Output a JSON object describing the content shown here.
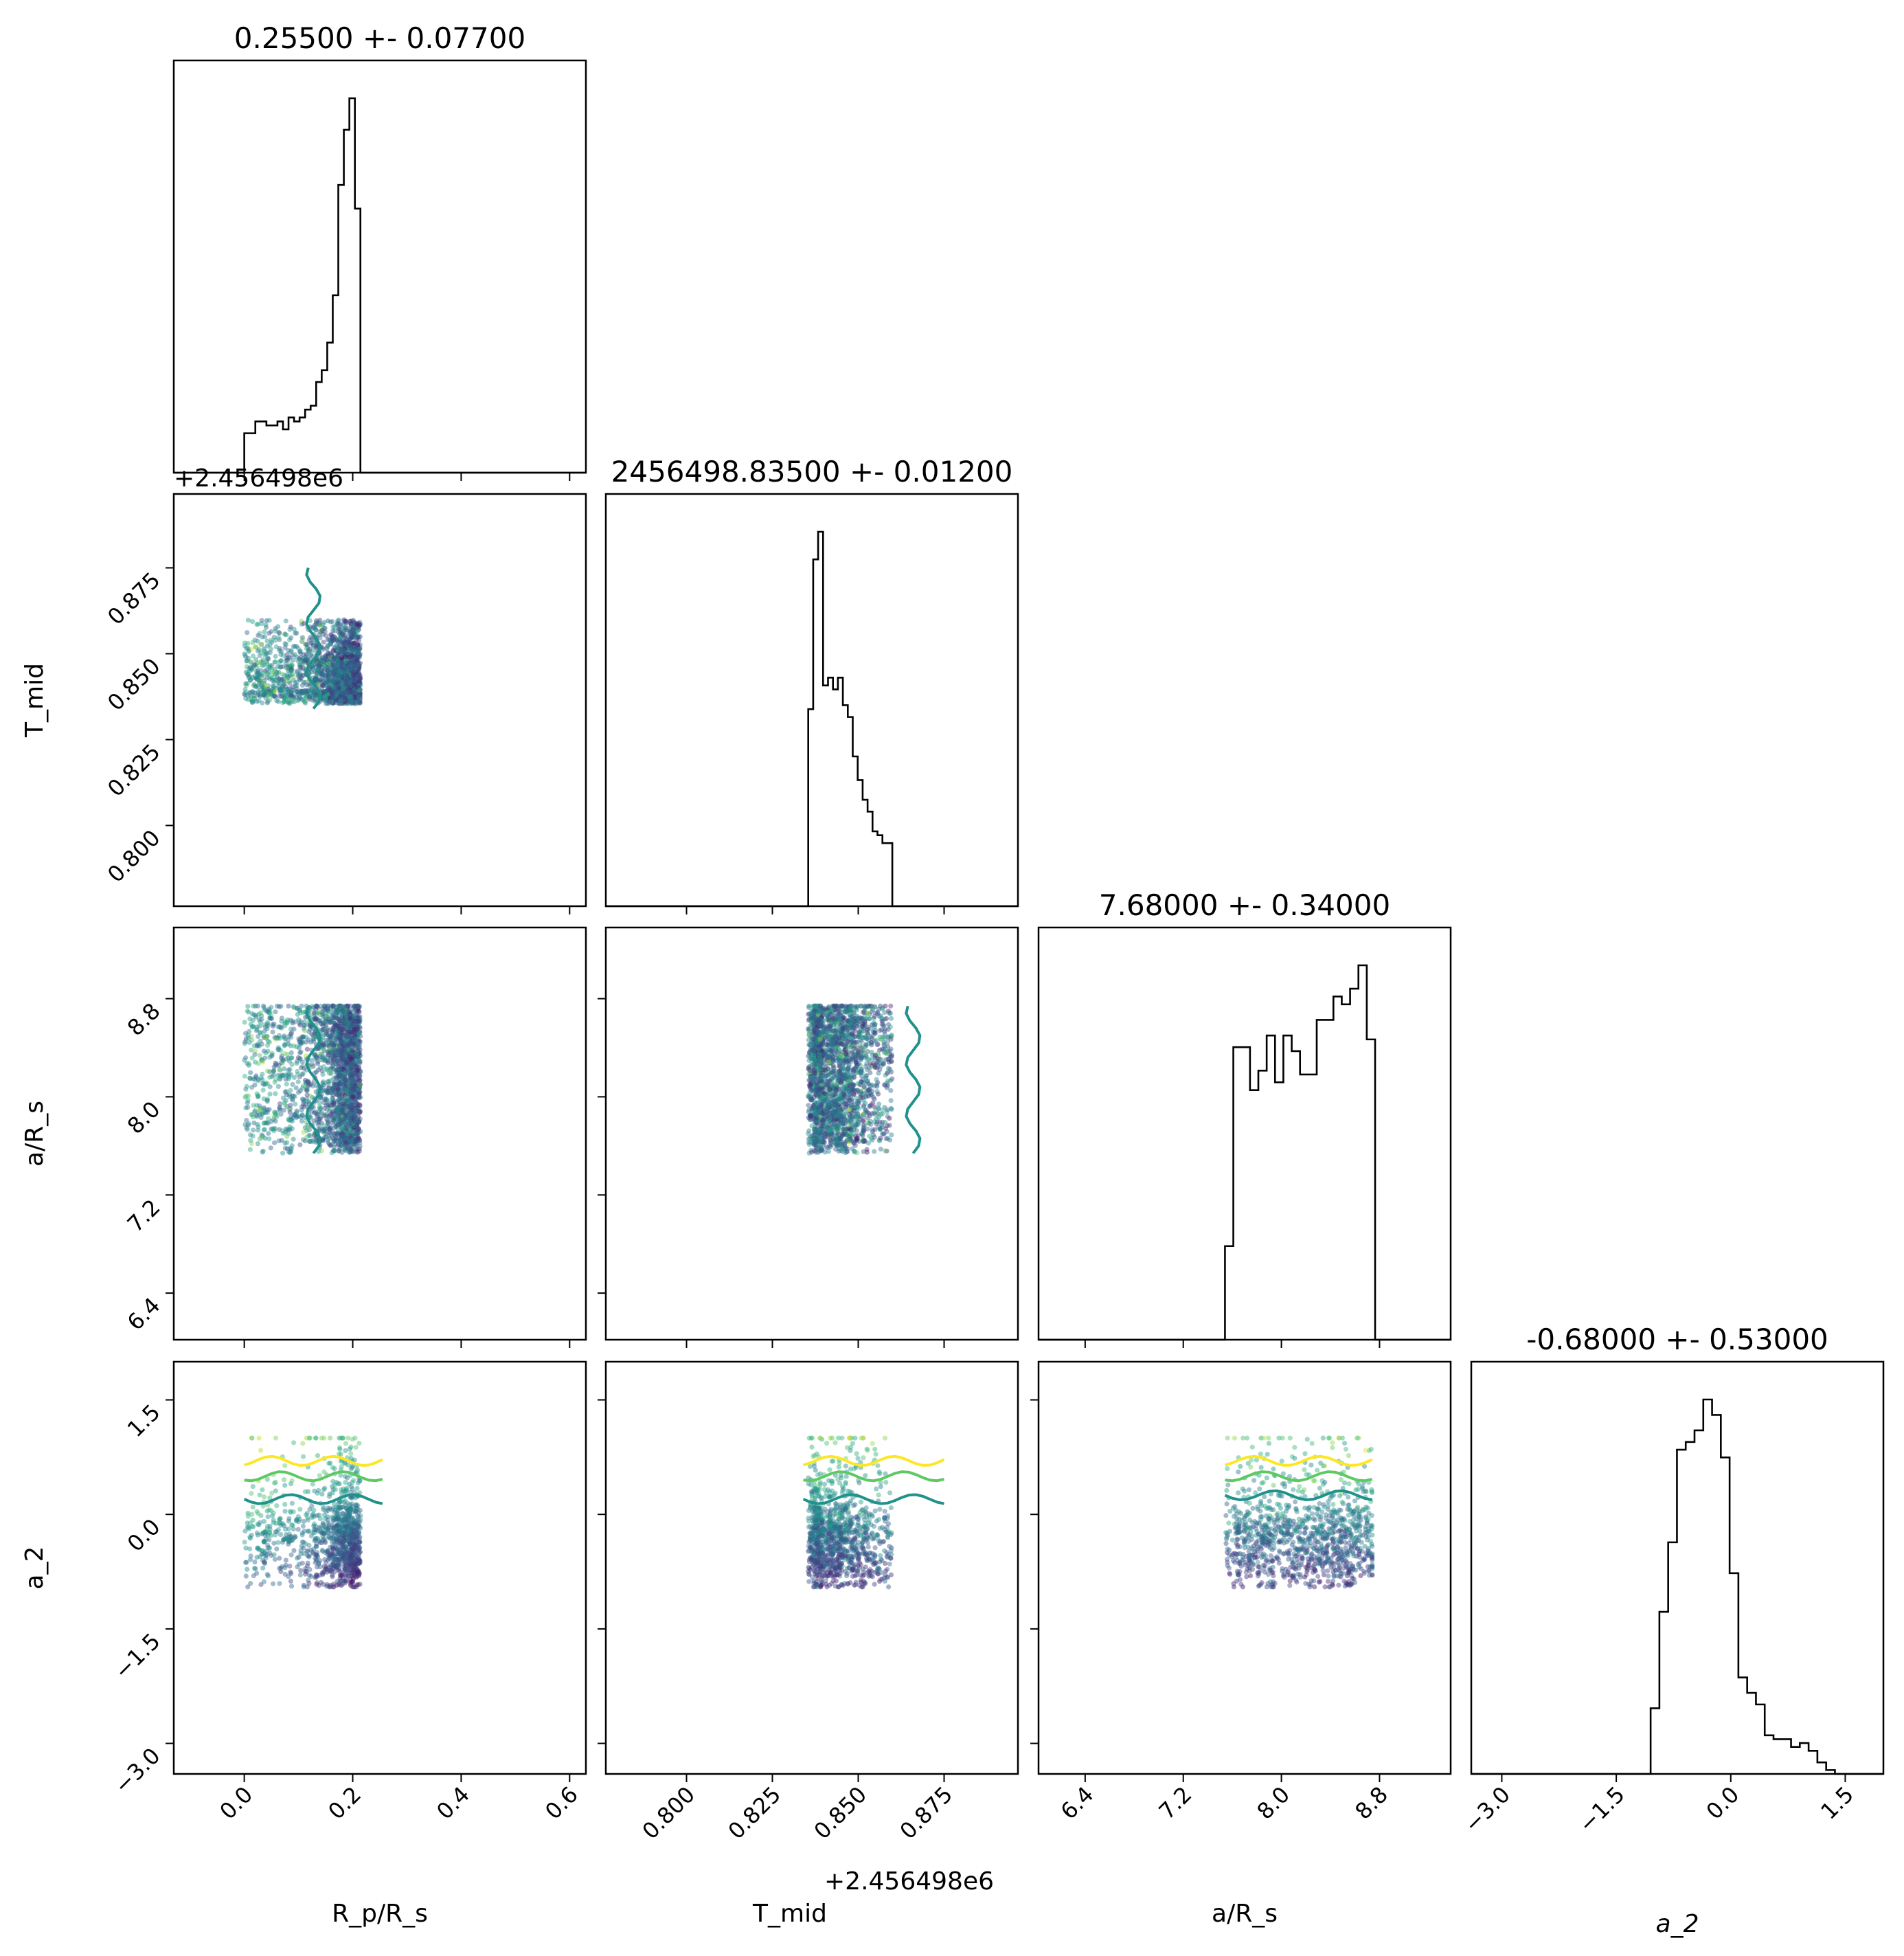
{
  "chart_data": {
    "type": "corner",
    "parameters": [
      {
        "key": "rp",
        "label": "R_p/R_s",
        "title": "0.25500 +- 0.07700",
        "range": [
          -0.13,
          0.63
        ],
        "ticks": [
          0.0,
          0.2,
          0.4,
          0.6
        ],
        "tick_labels": [
          "0.0",
          "0.2",
          "0.4",
          "0.6"
        ]
      },
      {
        "key": "tmid",
        "label": "T_mid",
        "title": "2456498.83500 +- 0.01200",
        "offset_label": "+2.456498e6",
        "range": [
          0.7765,
          0.8965
        ],
        "ticks": [
          0.8,
          0.825,
          0.85,
          0.875
        ],
        "tick_labels": [
          "0.800",
          "0.825",
          "0.850",
          "0.875"
        ]
      },
      {
        "key": "ars",
        "label": "a/R_s",
        "title": "7.68000 +- 0.34000",
        "range": [
          6.02,
          9.38
        ],
        "ticks": [
          6.4,
          7.2,
          8.0,
          8.8
        ],
        "tick_labels": [
          "6.4",
          "7.2",
          "8.0",
          "8.8"
        ]
      },
      {
        "key": "a2",
        "label": "a_2",
        "title": "-0.68000 +- 0.53000",
        "range": [
          -3.4,
          2.0
        ],
        "ticks": [
          -3.0,
          -1.5,
          0.0,
          1.5
        ],
        "tick_labels": [
          "−3.0",
          "−1.5",
          "0.0",
          "1.5"
        ]
      }
    ],
    "histograms": {
      "rp": {
        "edges_start": 0.0,
        "bin_width": 0.0102,
        "counts": [
          10,
          10,
          13,
          13,
          12,
          12,
          13,
          11,
          14,
          13,
          14,
          16,
          17,
          23,
          26,
          33,
          45,
          73,
          87,
          95,
          67
        ]
      },
      "tmid": {
        "edges_start": 0.834,
        "bin_width": 0.00144,
        "counts": [
          0,
          50,
          88,
          95,
          56,
          58,
          55,
          58,
          51,
          48,
          38,
          32,
          27,
          24,
          19,
          18,
          16,
          16
        ]
      },
      "ars": {
        "edges_start": 7.54,
        "bin_width": 0.068,
        "counts": [
          24,
          75,
          75,
          64,
          69,
          78,
          66,
          78,
          74,
          68,
          68,
          82,
          82,
          88,
          86,
          90,
          96,
          77
        ]
      },
      "a2": {
        "edges_start": -1.05,
        "bin_width": 0.115,
        "counts": [
          17,
          42,
          60,
          84,
          86,
          89,
          97,
          93,
          82,
          52,
          25,
          21,
          18,
          10,
          9,
          9,
          7,
          8,
          6,
          3,
          1,
          0
        ]
      }
    },
    "scatter_bounds": {
      "rp": [
        0.0,
        0.255
      ],
      "tmid": [
        0.834,
        0.875
      ],
      "ars": [
        7.54,
        8.74
      ],
      "a2": [
        -0.95,
        1.0
      ]
    },
    "contour_colors": [
      "#21918c",
      "#5ec962",
      "#fde725"
    ],
    "point_colormap": "viridis"
  }
}
